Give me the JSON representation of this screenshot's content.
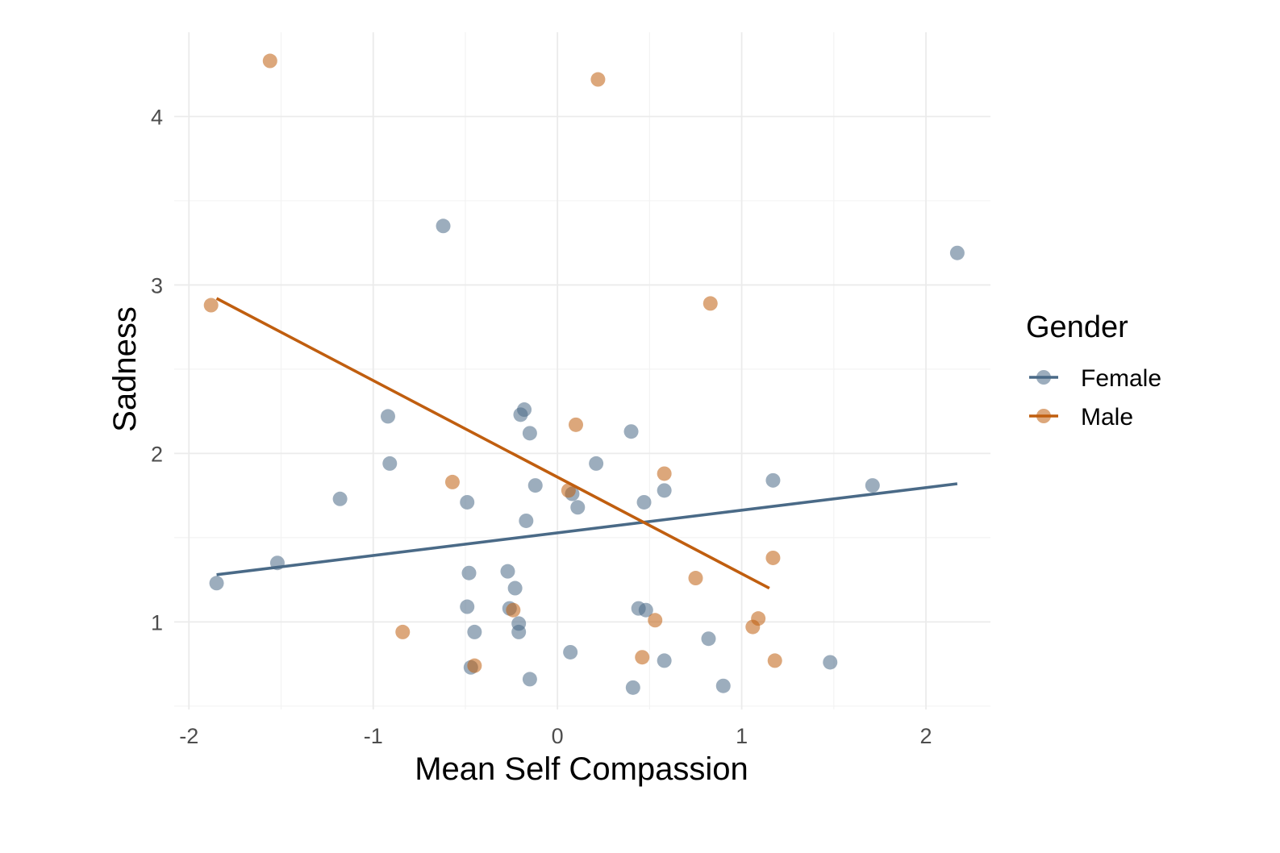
{
  "chart_data": {
    "type": "scatter",
    "xlabel": "Mean Self Compassion",
    "ylabel": "Sadness",
    "xlim": [
      -2.08,
      2.35
    ],
    "ylim": [
      0.48,
      4.5
    ],
    "x_ticks": [
      -2,
      -1,
      0,
      1,
      2
    ],
    "x_tick_labels": [
      "-2",
      "-1",
      "0",
      "1",
      "2"
    ],
    "y_ticks": [
      1,
      2,
      3,
      4
    ],
    "y_tick_labels": [
      "1",
      "2",
      "3",
      "4"
    ],
    "grid": true,
    "legend": {
      "title": "Gender",
      "position": "right"
    },
    "series": [
      {
        "name": "Female",
        "color": "#4a6a87",
        "points": [
          [
            -1.85,
            1.23
          ],
          [
            -1.52,
            1.35
          ],
          [
            -1.18,
            1.73
          ],
          [
            -0.92,
            2.22
          ],
          [
            -0.91,
            1.94
          ],
          [
            -0.62,
            3.35
          ],
          [
            -0.49,
            1.71
          ],
          [
            -0.48,
            1.29
          ],
          [
            -0.49,
            1.09
          ],
          [
            -0.45,
            0.94
          ],
          [
            -0.47,
            0.73
          ],
          [
            -0.27,
            1.3
          ],
          [
            -0.26,
            1.08
          ],
          [
            -0.23,
            1.2
          ],
          [
            -0.21,
            0.99
          ],
          [
            -0.21,
            0.94
          ],
          [
            -0.2,
            2.23
          ],
          [
            -0.18,
            2.26
          ],
          [
            -0.17,
            1.6
          ],
          [
            -0.15,
            2.12
          ],
          [
            -0.15,
            0.66
          ],
          [
            -0.12,
            1.81
          ],
          [
            0.08,
            1.76
          ],
          [
            0.11,
            1.68
          ],
          [
            0.21,
            1.94
          ],
          [
            0.07,
            0.82
          ],
          [
            0.4,
            2.13
          ],
          [
            0.44,
            1.08
          ],
          [
            0.48,
            1.07
          ],
          [
            0.47,
            1.71
          ],
          [
            0.58,
            1.78
          ],
          [
            0.58,
            0.77
          ],
          [
            0.41,
            0.61
          ],
          [
            0.82,
            0.9
          ],
          [
            0.9,
            0.62
          ],
          [
            1.17,
            1.84
          ],
          [
            1.48,
            0.76
          ],
          [
            1.71,
            1.81
          ],
          [
            2.17,
            3.19
          ]
        ]
      },
      {
        "name": "Male",
        "color": "#c05e0f",
        "points": [
          [
            -1.88,
            2.88
          ],
          [
            -1.56,
            4.33
          ],
          [
            -0.84,
            0.94
          ],
          [
            -0.57,
            1.83
          ],
          [
            -0.45,
            0.74
          ],
          [
            -0.24,
            1.07
          ],
          [
            0.06,
            1.78
          ],
          [
            0.1,
            2.17
          ],
          [
            0.22,
            4.22
          ],
          [
            0.46,
            0.79
          ],
          [
            0.53,
            1.01
          ],
          [
            0.58,
            1.88
          ],
          [
            0.75,
            1.26
          ],
          [
            0.83,
            2.89
          ],
          [
            1.06,
            0.97
          ],
          [
            1.09,
            1.02
          ],
          [
            1.17,
            1.38
          ],
          [
            1.18,
            0.77
          ]
        ]
      }
    ],
    "trend_lines": [
      {
        "series": "Female",
        "x": [
          -1.85,
          2.17
        ],
        "y": [
          1.28,
          1.82
        ]
      },
      {
        "series": "Male",
        "x": [
          -1.85,
          1.15
        ],
        "y": [
          2.92,
          1.2
        ]
      }
    ]
  }
}
